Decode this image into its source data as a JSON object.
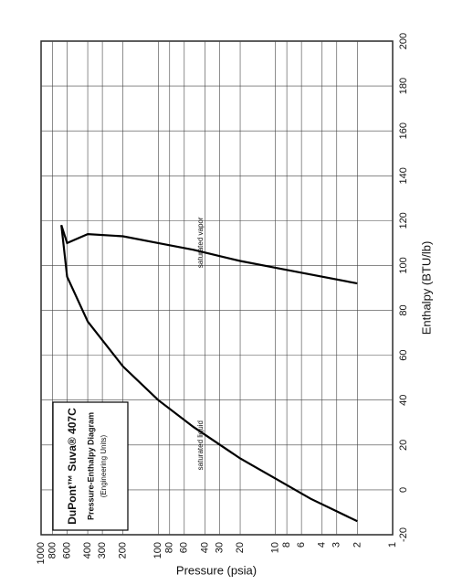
{
  "chart_data": {
    "type": "line",
    "title": "DuPont™ Suva® 407C",
    "subtitle": "Pressure-Enthalpy Diagram",
    "note": "(Engineering Units)",
    "x_label": "Enthalpy (BTU/lb)",
    "y_label": "Pressure (psia)",
    "xlim": [
      -20,
      200
    ],
    "xticks": [
      -20,
      0,
      20,
      40,
      60,
      80,
      100,
      120,
      140,
      160,
      180,
      200
    ],
    "ylim": [
      1,
      1000
    ],
    "yticks": [
      1,
      2,
      3,
      4,
      6,
      8,
      10,
      20,
      30,
      40,
      60,
      80,
      100,
      200,
      300,
      400,
      600,
      800,
      1000
    ],
    "log_y": true,
    "grid": true,
    "series": [
      {
        "name": "saturated liquid",
        "color": "#000000",
        "x": [
          -14,
          -4,
          5,
          14,
          28,
          40,
          55,
          75,
          95,
          118
        ],
        "values": [
          2,
          5,
          10,
          20,
          50,
          100,
          200,
          400,
          600,
          672
        ]
      },
      {
        "name": "saturated vapor",
        "color": "#000000",
        "x": [
          92,
          96,
          99,
          102,
          107,
          110,
          113,
          114,
          110,
          118
        ],
        "values": [
          2,
          5,
          10,
          20,
          50,
          100,
          200,
          400,
          600,
          672
        ]
      }
    ]
  }
}
